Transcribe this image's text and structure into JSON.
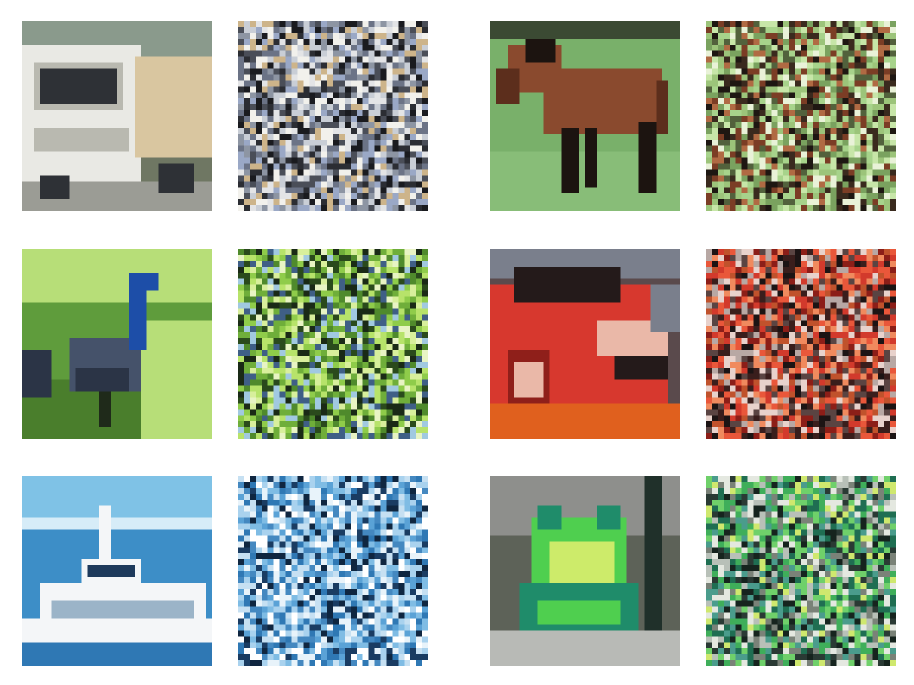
{
  "figure": {
    "pairs": [
      {
        "subject": "truck",
        "image_icon": "truck-photo-icon",
        "noise_icon": "noise-pattern-icon",
        "palette": {
          "sky": "#8a9a8c",
          "bg": "#6f7763",
          "main": "#e9e9e4",
          "shade": "#b9b9b0",
          "dark": "#2e3136",
          "accent": "#d9c6a0",
          "ground": "#9b9c95"
        },
        "noise_colors": [
          "#2b2d33",
          "#4a4e58",
          "#8d95a3",
          "#c9ced6",
          "#f2f1ec",
          "#9aa8c6",
          "#cdb48a",
          "#6b7386",
          "#1a1b1f",
          "#e3e4e6"
        ]
      },
      {
        "subject": "horse",
        "image_icon": "horse-photo-icon",
        "noise_icon": "noise-pattern-icon",
        "palette": {
          "sky": "#3b4a33",
          "bg": "#79b06a",
          "main": "#8a4a2e",
          "shade": "#5c2e1c",
          "dark": "#1c1410",
          "accent": "#a9cf8e",
          "ground": "#88bd78"
        },
        "noise_colors": [
          "#a7d38b",
          "#c7e6a8",
          "#7aa25f",
          "#3a2a1e",
          "#7b3d25",
          "#b06a43",
          "#e9f2d8",
          "#52613c",
          "#1e1712",
          "#9cc47a"
        ]
      },
      {
        "subject": "bird",
        "image_icon": "bird-photo-icon",
        "noise_icon": "noise-pattern-icon",
        "palette": {
          "sky": "#b7de78",
          "bg": "#5f9c3c",
          "main": "#45526a",
          "shade": "#2b3446",
          "dark": "#1f2a1a",
          "accent": "#1d4ea8",
          "ground": "#4a7e2c"
        },
        "noise_colors": [
          "#8fcc4a",
          "#b7e36a",
          "#4f8a2c",
          "#2a4a1c",
          "#d8ef9c",
          "#3f5f86",
          "#1a2a16",
          "#6fae3a",
          "#a1c9e0",
          "#e8f4c4"
        ]
      },
      {
        "subject": "car",
        "image_icon": "car-photo-icon",
        "noise_icon": "noise-pattern-icon",
        "palette": {
          "sky": "#7a7f8c",
          "bg": "#5a4a4c",
          "main": "#d7382e",
          "shade": "#8f1f1a",
          "dark": "#241a1a",
          "accent": "#eab8a8",
          "ground": "#e0601e"
        },
        "noise_colors": [
          "#d23a2c",
          "#e9573a",
          "#8c1e18",
          "#3a1e1c",
          "#f08a5e",
          "#b8a8a4",
          "#e8d2cc",
          "#5a4442",
          "#1c1414",
          "#c0522c"
        ]
      },
      {
        "subject": "ship",
        "image_icon": "ship-photo-icon",
        "noise_icon": "noise-pattern-icon",
        "palette": {
          "sky": "#7fc2e6",
          "bg": "#3d8ec7",
          "main": "#f4f6f8",
          "shade": "#9bb4c8",
          "dark": "#1e3a5c",
          "accent": "#d6ecf8",
          "ground": "#2f78b4"
        },
        "noise_colors": [
          "#2f78b4",
          "#5aa2d6",
          "#a9d2ee",
          "#e8f3fa",
          "#ffffff",
          "#1a3c62",
          "#7fbce4",
          "#0f2640",
          "#c6e0f2",
          "#4488c0"
        ]
      },
      {
        "subject": "frog",
        "image_icon": "frog-photo-icon",
        "noise_icon": "noise-pattern-icon",
        "palette": {
          "sky": "#8e8f8c",
          "bg": "#5d6258",
          "main": "#4fcf4f",
          "shade": "#1f8c6a",
          "dark": "#20302a",
          "accent": "#cdeb6a",
          "ground": "#b8bab6"
        },
        "noise_colors": [
          "#3fae5a",
          "#6fd06a",
          "#1f6e52",
          "#2a3a34",
          "#b8c0b8",
          "#e4e8e0",
          "#7a8278",
          "#cfe86e",
          "#16241e",
          "#4a9c8c"
        ]
      }
    ]
  }
}
